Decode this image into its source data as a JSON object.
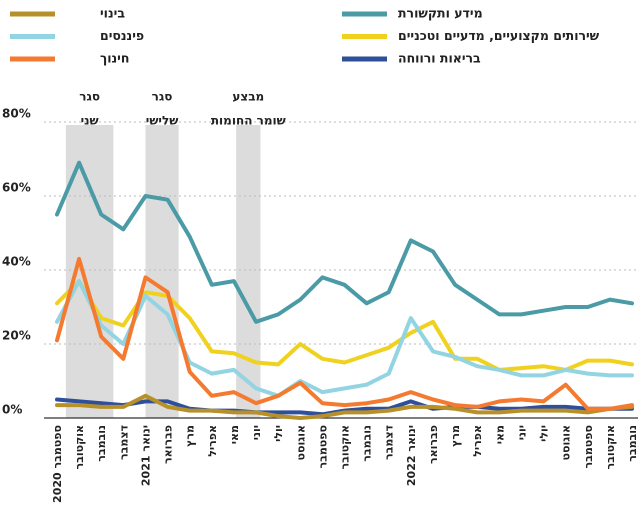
{
  "chart_data": {
    "type": "line",
    "categories": [
      "ספטמבר 2020",
      "אוקטובר",
      "נובמבר",
      "דצמבר",
      "ינואר 2021",
      "פברואר",
      "מרץ",
      "אפריל",
      "מאי",
      "יוני",
      "יולי",
      "אוגוסט",
      "ספטמבר",
      "אוקטובר",
      "נובמבר",
      "דצמבר",
      "ינואר 2022",
      "פברואר",
      "מרץ",
      "אפריל",
      "מאי",
      "יוני",
      "יולי",
      "אוגוסט",
      "ספטמבר",
      "אוקטובר",
      "נובמבר"
    ],
    "series": [
      {
        "name": "מידע ותקשורת",
        "color": "#4a9ba6",
        "values": [
          55,
          69,
          55,
          51,
          60,
          59,
          49,
          36,
          37,
          26,
          28,
          32,
          38,
          36,
          31,
          34,
          48,
          45,
          36,
          32,
          28,
          28,
          29,
          30,
          30,
          32,
          31
        ]
      },
      {
        "name": "שירותים מקצועיים, מדעיים וטכניים",
        "color": "#f0d21e",
        "values": [
          31,
          37,
          27,
          25,
          34,
          33,
          27,
          18,
          17.5,
          15,
          14.5,
          20,
          16,
          15,
          17,
          19,
          23,
          26,
          16,
          16,
          13,
          13.5,
          14,
          13,
          15.5,
          15.5,
          14.5
        ]
      },
      {
        "name": "בריאות ורווחה",
        "color": "#2e4f9a",
        "values": [
          5,
          4.5,
          4,
          3.5,
          4.5,
          4.5,
          2.5,
          2,
          2,
          1.5,
          1.5,
          1.5,
          1,
          2,
          2.5,
          2.5,
          4.5,
          2.5,
          3,
          3,
          2.5,
          2.5,
          3,
          3,
          2.5,
          2.5,
          2.5
        ]
      },
      {
        "name": "בינוי",
        "color": "#b8902a",
        "values": [
          3.5,
          3.5,
          3,
          3,
          6,
          3,
          2,
          2,
          1.5,
          1.5,
          0.5,
          0,
          0.5,
          1.5,
          1.5,
          2,
          3,
          3,
          2.5,
          1.5,
          1.5,
          2,
          2,
          2,
          1.5,
          2.5,
          3
        ]
      },
      {
        "name": "פיננסים",
        "color": "#92d4e2",
        "values": [
          26,
          37,
          25,
          20,
          33,
          28,
          15,
          12,
          13,
          8,
          6,
          10,
          7,
          8,
          9,
          12,
          27,
          18,
          16.5,
          14,
          13,
          11.5,
          11.5,
          13,
          12,
          11.5,
          11.5
        ]
      },
      {
        "name": "חינוך",
        "color": "#f47a30",
        "values": [
          21,
          43,
          22,
          16,
          38,
          34,
          12.5,
          6,
          7,
          4,
          6,
          9.5,
          4,
          3.5,
          4,
          5,
          7,
          5,
          3.5,
          3,
          4.5,
          5,
          4.5,
          9,
          2.5,
          2.5,
          3.5
        ]
      }
    ],
    "annotations": [
      {
        "lines": [
          "סגר",
          "שני"
        ]
      },
      {
        "lines": [
          "סגר",
          "שלישי"
        ]
      },
      {
        "lines": [
          "מבצע",
          "שומר החומות"
        ]
      }
    ],
    "ylim": [
      0,
      80
    ],
    "yticks": [
      {
        "value": 0,
        "label": "0%"
      },
      {
        "value": 20,
        "label": "20%"
      },
      {
        "value": 40,
        "label": "40%"
      },
      {
        "value": 60,
        "label": "60%"
      },
      {
        "value": 80,
        "label": "80%"
      }
    ],
    "grid": true
  }
}
